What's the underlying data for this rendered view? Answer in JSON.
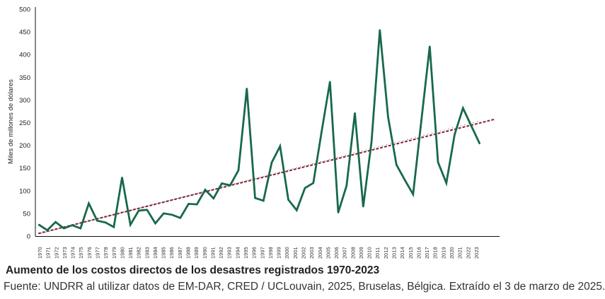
{
  "caption": {
    "title": "Aumento de los costos directos de los desastres registrados 1970-2023",
    "source": "Fuente: UNDRR al utilizar datos de EM-DAR, CRED / UCLouvain, 2025, Bruselas, Bélgica. Extraído el 3 de marzo de 2025."
  },
  "chart_data": {
    "type": "line",
    "title": "",
    "xlabel": "",
    "ylabel": "Miles de millones de dólares",
    "ylim": [
      0,
      500
    ],
    "yticks": [
      0,
      50,
      100,
      150,
      200,
      250,
      300,
      350,
      400,
      450,
      500
    ],
    "grid": false,
    "x": [
      "1970",
      "1971",
      "1972",
      "1973",
      "1974",
      "1975",
      "1976",
      "1977",
      "1978",
      "1979",
      "1980",
      "1981",
      "1982",
      "1983",
      "1984",
      "1985",
      "1986",
      "1987",
      "1988",
      "1989",
      "1990",
      "1991",
      "1992",
      "1993",
      "1994",
      "1995",
      "1996",
      "1997",
      "1998",
      "1999",
      "2000",
      "2001",
      "2002",
      "2003",
      "2004",
      "2005",
      "2006",
      "2007",
      "2008",
      "2009",
      "2010",
      "2011",
      "2012",
      "2013",
      "2014",
      "2015",
      "2016",
      "2017",
      "2018",
      "2019",
      "2020",
      "2021",
      "2022",
      "2023"
    ],
    "series": [
      {
        "values": [
          25,
          13,
          31,
          17,
          24,
          17,
          72,
          34,
          30,
          20,
          129,
          25,
          56,
          58,
          28,
          50,
          47,
          40,
          71,
          70,
          102,
          83,
          116,
          112,
          145,
          325,
          84,
          78,
          162,
          198,
          80,
          57,
          106,
          117,
          230,
          340,
          52,
          111,
          271,
          65,
          207,
          454,
          262,
          157,
          124,
          92,
          255,
          418,
          163,
          117,
          224,
          282,
          243,
          204
        ],
        "color": "#17694a"
      }
    ],
    "trendline": {
      "type": "linear",
      "start": 6,
      "end": 257,
      "color": "#8b2a3f",
      "style": "dotted"
    }
  }
}
